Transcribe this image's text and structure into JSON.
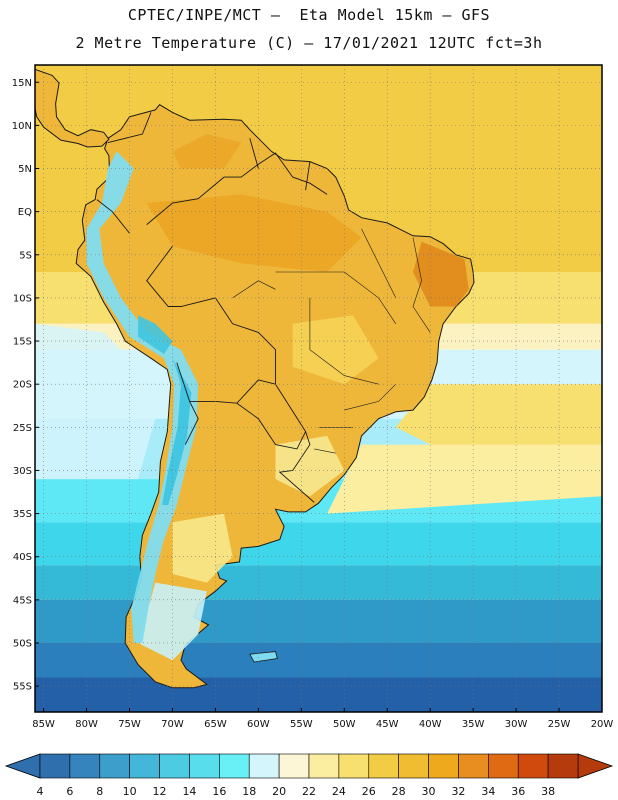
{
  "header": {
    "line1": "CPTEC/INPE/MCT –  Eta Model 15km – GFS",
    "line2": "2 Metre Temperature (C) – 17/01/2021 12UTC fct=3h"
  },
  "map": {
    "lat_range": [
      -58,
      17
    ],
    "lon_range": [
      -86,
      -20
    ],
    "lat_labels": [
      {
        "value": 15,
        "text": "15N"
      },
      {
        "value": 10,
        "text": "10N"
      },
      {
        "value": 5,
        "text": "5N"
      },
      {
        "value": 0,
        "text": "EQ"
      },
      {
        "value": -5,
        "text": "5S"
      },
      {
        "value": -10,
        "text": "10S"
      },
      {
        "value": -15,
        "text": "15S"
      },
      {
        "value": -20,
        "text": "20S"
      },
      {
        "value": -25,
        "text": "25S"
      },
      {
        "value": -30,
        "text": "30S"
      },
      {
        "value": -35,
        "text": "35S"
      },
      {
        "value": -40,
        "text": "40S"
      },
      {
        "value": -45,
        "text": "45S"
      },
      {
        "value": -50,
        "text": "50S"
      },
      {
        "value": -55,
        "text": "55S"
      }
    ],
    "lon_labels": [
      {
        "value": -85,
        "text": "85W"
      },
      {
        "value": -80,
        "text": "80W"
      },
      {
        "value": -75,
        "text": "75W"
      },
      {
        "value": -70,
        "text": "70W"
      },
      {
        "value": -65,
        "text": "65W"
      },
      {
        "value": -60,
        "text": "60W"
      },
      {
        "value": -55,
        "text": "55W"
      },
      {
        "value": -50,
        "text": "50W"
      },
      {
        "value": -45,
        "text": "45W"
      },
      {
        "value": -40,
        "text": "40W"
      },
      {
        "value": -35,
        "text": "35W"
      },
      {
        "value": -30,
        "text": "30W"
      },
      {
        "value": -25,
        "text": "25W"
      },
      {
        "value": -20,
        "text": "20W"
      }
    ],
    "ocean_bands": [
      {
        "lat_top": 17,
        "lat_bottom": -7,
        "color": "#f2cc44"
      },
      {
        "lat_top": -7,
        "lat_bottom": -13,
        "color": "#f8e070"
      },
      {
        "lat_top": -13,
        "lat_bottom": -16,
        "color": "#fcf1c0"
      },
      {
        "lat_top": -16,
        "lat_bottom": -24,
        "color": "#d4f5fb"
      },
      {
        "lat_top": -24,
        "lat_bottom": -31,
        "color": "#a8ecfa"
      },
      {
        "lat_top": -31,
        "lat_bottom": -36,
        "color": "#5ee8f5"
      },
      {
        "lat_top": -36,
        "lat_bottom": -41,
        "color": "#3ed6ea"
      },
      {
        "lat_top": -41,
        "lat_bottom": -45,
        "color": "#34b9d6"
      },
      {
        "lat_top": -45,
        "lat_bottom": -50,
        "color": "#2f9ac8"
      },
      {
        "lat_top": -50,
        "lat_bottom": -54,
        "color": "#2a7fbc"
      },
      {
        "lat_top": -54,
        "lat_bottom": -58,
        "color": "#2460a8"
      }
    ],
    "atlantic_warm_color": "#f8e070",
    "atlantic_mid_color": "#f2cc44",
    "land_color": "#eeb73a",
    "land_hot_color": "#eba424",
    "land_cool_color": "#f8e88c",
    "andes_cold_color": "#7fdcf0",
    "andes_cold2_color": "#3fc5e0",
    "patagonia_cold_color": "#c8f1f8",
    "border_color": "#1a1a1a"
  },
  "colorbar": {
    "ticks": [
      "4",
      "6",
      "8",
      "10",
      "12",
      "14",
      "16",
      "18",
      "20",
      "22",
      "24",
      "26",
      "28",
      "30",
      "32",
      "34",
      "36",
      "38"
    ],
    "min_color": "#2f6fae",
    "max_color": "#b53a0c",
    "colors": [
      "#2f6fae",
      "#3584bd",
      "#3c9fcb",
      "#44b6d9",
      "#4ccbe3",
      "#58dded",
      "#68f0f6",
      "#d4f5fb",
      "#fcf6d6",
      "#fbeea0",
      "#f8e070",
      "#f2cc44",
      "#efbc32",
      "#eeaa1c",
      "#e88d20",
      "#e06a14",
      "#d04a0e",
      "#b53a0c"
    ]
  }
}
